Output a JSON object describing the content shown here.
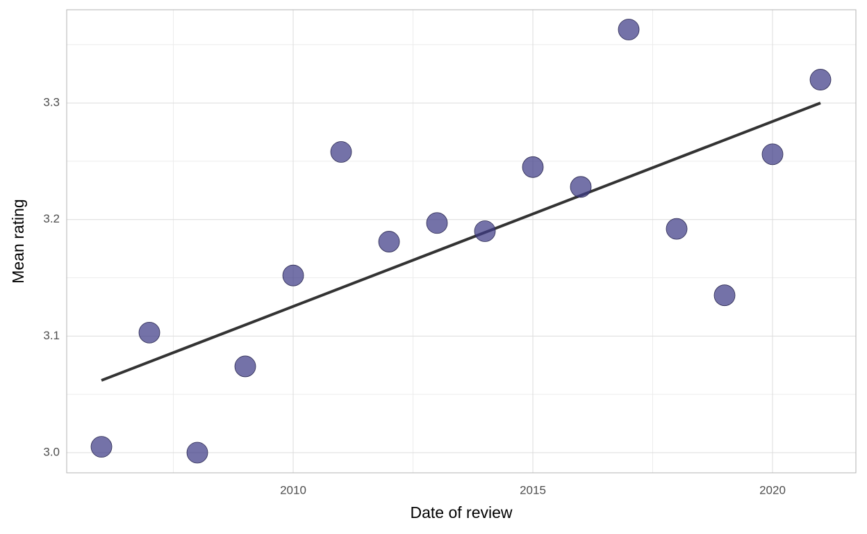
{
  "chart_data": {
    "type": "scatter",
    "x_label": "Date of review",
    "y_label": "Mean rating",
    "x": [
      2006,
      2007,
      2008,
      2009,
      2010,
      2011,
      2012,
      2013,
      2014,
      2015,
      2016,
      2017,
      2018,
      2019,
      2020,
      2021
    ],
    "values": [
      3.005,
      3.103,
      3.0,
      3.074,
      3.152,
      3.258,
      3.181,
      3.197,
      3.19,
      3.245,
      3.228,
      3.363,
      3.192,
      3.135,
      3.256,
      3.32
    ],
    "color": "#3e3c86",
    "trend_line": {
      "x": [
        2006,
        2021
      ],
      "values": [
        3.062,
        3.3
      ],
      "color": "#333333"
    },
    "xlim": [
      2005.275,
      2021.739
    ],
    "ylim": [
      2.9827,
      3.38
    ],
    "xticks": [
      2010,
      2015,
      2020
    ],
    "yticks": [
      {
        "value": 3.0,
        "label": "3.0"
      },
      3.1,
      3.2,
      3.3
    ],
    "grid": true
  }
}
